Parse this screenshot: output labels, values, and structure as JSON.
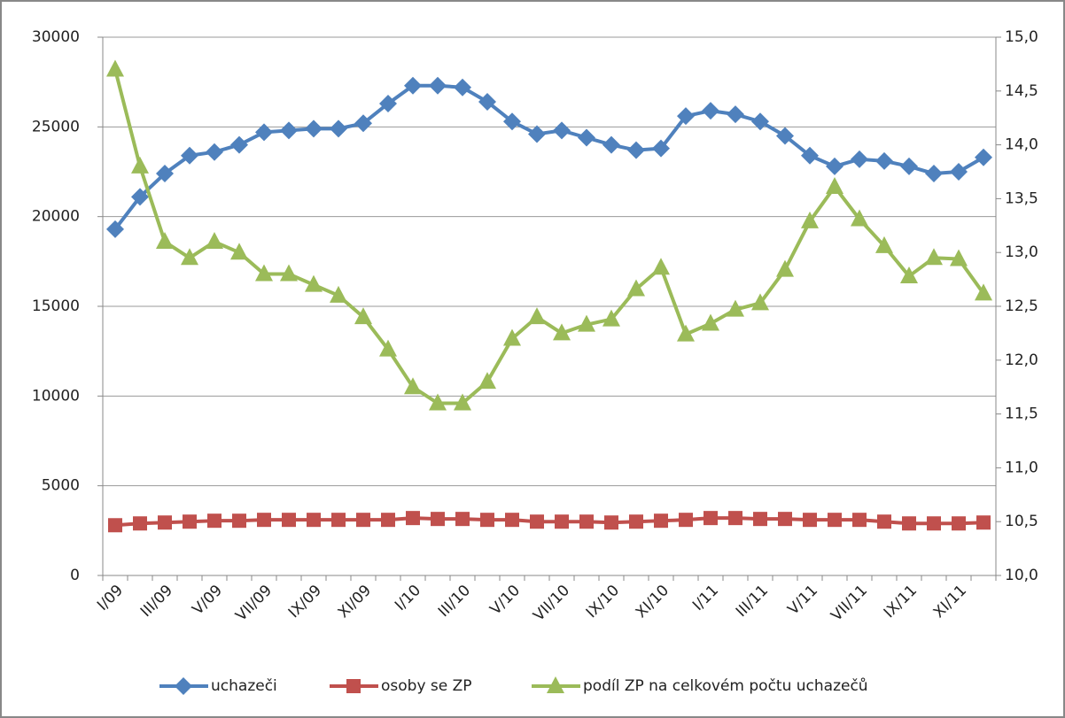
{
  "chart_data": {
    "type": "line",
    "categories": [
      "I/09",
      null,
      "III/09",
      null,
      "V/09",
      null,
      "VII/09",
      null,
      "IX/09",
      null,
      "XI/09",
      null,
      "I/10",
      null,
      "III/10",
      null,
      "V/10",
      null,
      "VII/10",
      null,
      "IX/10",
      null,
      "XI/10",
      null,
      "I/11",
      null,
      "III/11",
      null,
      "V/11",
      null,
      "VII/11",
      null,
      "IX/11",
      null,
      "XI/11",
      null
    ],
    "series": [
      {
        "name": "uchazeči",
        "color": "#4f81bd",
        "marker": "diamond",
        "values": [
          19300,
          21100,
          22400,
          23400,
          23600,
          24000,
          24700,
          24800,
          24900,
          24900,
          25200,
          26300,
          27300,
          27300,
          27200,
          26400,
          25300,
          24600,
          24800,
          24400,
          24000,
          23700,
          23800,
          25600,
          25900,
          25700,
          25300,
          24500,
          23400,
          22800,
          23200,
          23100,
          22800,
          22400,
          22500,
          23300
        ]
      },
      {
        "name": "osoby se ZP",
        "color": "#c0504d",
        "marker": "square",
        "values": [
          2800,
          2900,
          2950,
          3000,
          3050,
          3050,
          3100,
          3100,
          3100,
          3100,
          3100,
          3100,
          3200,
          3150,
          3150,
          3100,
          3100,
          3000,
          3000,
          3000,
          2950,
          3000,
          3050,
          3100,
          3200,
          3200,
          3150,
          3150,
          3100,
          3100,
          3100,
          3000,
          2900,
          2900,
          2900,
          2950
        ]
      },
      {
        "name": "podíl ZP na celkovém počtu uchazečů",
        "color": "#9bbb59",
        "marker": "triangle",
        "axis": "y2",
        "values": [
          14.7,
          13.8,
          13.1,
          12.95,
          13.1,
          13.0,
          12.8,
          12.8,
          12.7,
          12.6,
          12.4,
          12.1,
          11.75,
          11.6,
          11.6,
          11.8,
          12.2,
          12.4,
          12.25,
          12.33,
          12.38,
          12.66,
          12.86,
          12.24,
          12.34,
          12.47,
          12.53,
          12.84,
          13.29,
          13.61,
          13.31,
          13.06,
          12.78,
          12.95,
          12.94,
          12.62
        ]
      }
    ],
    "ylim": [
      0,
      30000
    ],
    "yticks": [
      0,
      5000,
      10000,
      15000,
      20000,
      25000,
      30000
    ],
    "y2lim": [
      10,
      15
    ],
    "y2ticks": [
      {
        "value": 10,
        "label": "10,0"
      },
      {
        "value": 10.5,
        "label": "10,5"
      },
      {
        "value": 11,
        "label": "11,0"
      },
      {
        "value": 11.5,
        "label": "11,5"
      },
      {
        "value": 12,
        "label": "12,0"
      },
      {
        "value": 12.5,
        "label": "12,5"
      },
      {
        "value": 13,
        "label": "13,0"
      },
      {
        "value": 13.5,
        "label": "13,5"
      },
      {
        "value": 14,
        "label": "14,0"
      },
      {
        "value": 14.5,
        "label": "14,5"
      },
      {
        "value": 15,
        "label": "15,0"
      }
    ],
    "grid": true,
    "legend": "bottom"
  }
}
